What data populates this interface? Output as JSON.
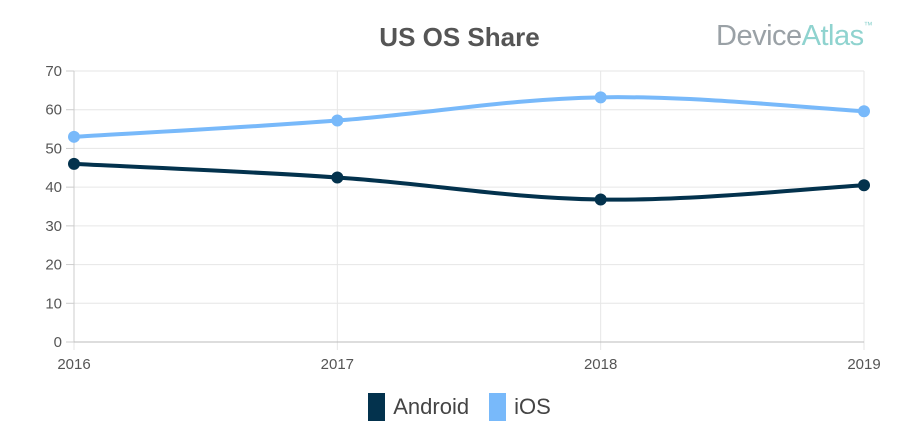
{
  "brand": {
    "part1": "Device",
    "part2": "Atlas",
    "tm": "™"
  },
  "chart_data": {
    "type": "line",
    "title": "US OS Share",
    "x": [
      "2016",
      "2017",
      "2018",
      "2019"
    ],
    "series": [
      {
        "name": "Android",
        "values": [
          46,
          42.5,
          36.8,
          40.5
        ],
        "color": "#03324d"
      },
      {
        "name": "iOS",
        "values": [
          53,
          57.2,
          63.2,
          59.6
        ],
        "color": "#78b9fa"
      }
    ],
    "ylim": [
      0,
      70
    ],
    "yticks": [
      0,
      10,
      20,
      30,
      40,
      50,
      60,
      70
    ],
    "grid": true,
    "legend": "bottom-center"
  }
}
